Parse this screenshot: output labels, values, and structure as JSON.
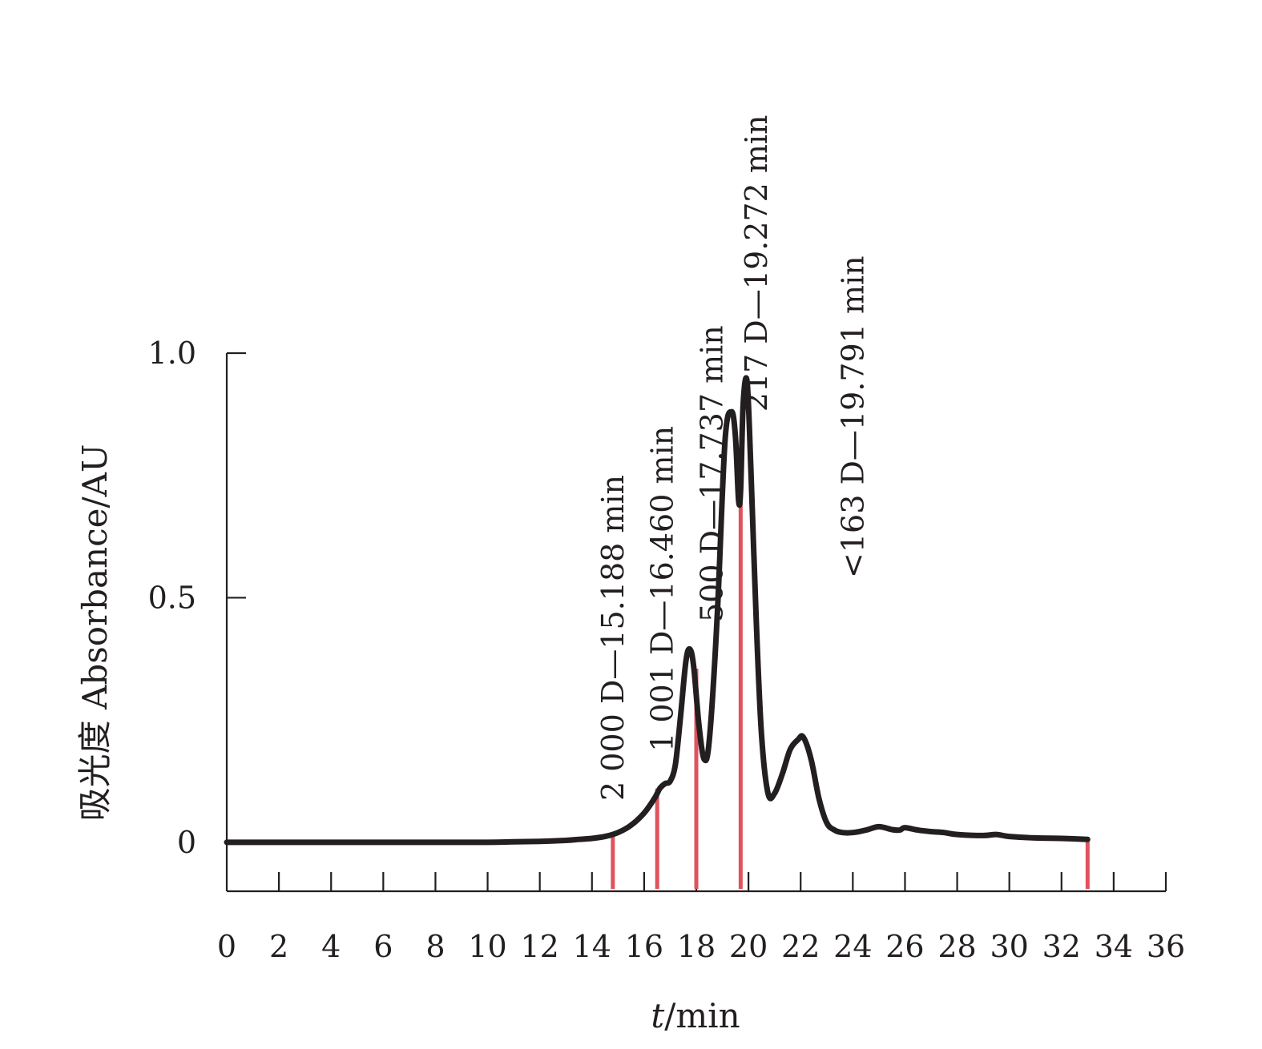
{
  "chart_data": {
    "type": "line",
    "title": "",
    "xlabel": {
      "italic": "t",
      "rest": "/min"
    },
    "ylabel": "吸光度 Absorbance/AU",
    "xlim": [
      0,
      36
    ],
    "ylim": [
      -0.1,
      1.0
    ],
    "xticks": [
      0,
      2,
      4,
      6,
      8,
      10,
      12,
      14,
      16,
      18,
      20,
      22,
      24,
      26,
      28,
      30,
      32,
      34,
      36
    ],
    "xtick_labels": [
      "0",
      "2",
      "4",
      "6",
      "8",
      "10",
      "12",
      "14",
      "16",
      "18",
      "20",
      "22",
      "24",
      "26",
      "28",
      "30",
      "32",
      "34",
      "36"
    ],
    "yticks": [
      0,
      0.5,
      1.0
    ],
    "ytick_labels": [
      "0",
      "0.5",
      "1.0"
    ],
    "grid": false,
    "series": [
      {
        "color": "#231f20",
        "x": [
          0,
          2,
          4,
          6,
          8,
          10,
          11,
          12,
          13,
          13.5,
          14,
          14.5,
          15,
          15.5,
          16,
          16.4,
          16.6,
          16.8,
          17,
          17.2,
          17.4,
          17.6,
          17.75,
          17.9,
          18.1,
          18.3,
          18.5,
          18.8,
          19.1,
          19.35,
          19.5,
          19.62,
          19.7,
          19.8,
          19.95,
          20.1,
          20.3,
          20.5,
          20.75,
          21,
          21.3,
          21.6,
          21.9,
          22.1,
          22.4,
          22.7,
          23,
          23.3,
          23.6,
          24,
          24.5,
          25,
          25.5,
          25.8,
          26,
          26.5,
          27,
          27.5,
          28,
          29,
          29.5,
          30,
          31,
          32,
          33
        ],
        "y": [
          0,
          0,
          0,
          0,
          0,
          0,
          0.001,
          0.002,
          0.004,
          0.006,
          0.008,
          0.012,
          0.02,
          0.035,
          0.06,
          0.09,
          0.11,
          0.12,
          0.125,
          0.16,
          0.26,
          0.37,
          0.395,
          0.36,
          0.24,
          0.17,
          0.21,
          0.46,
          0.82,
          0.88,
          0.83,
          0.7,
          0.72,
          0.9,
          0.94,
          0.75,
          0.45,
          0.22,
          0.1,
          0.1,
          0.14,
          0.19,
          0.21,
          0.215,
          0.17,
          0.09,
          0.04,
          0.025,
          0.02,
          0.02,
          0.025,
          0.032,
          0.026,
          0.025,
          0.03,
          0.025,
          0.022,
          0.02,
          0.016,
          0.014,
          0.016,
          0.012,
          0.009,
          0.008,
          0.006
        ]
      }
    ],
    "markers": {
      "color": "#e0525d",
      "x": [
        14.8,
        16.5,
        18.0,
        19.7,
        33.0
      ],
      "y_top": [
        0.015,
        0.11,
        0.355,
        0.71,
        0.01
      ]
    },
    "annotations": [
      {
        "text": "2 000 D—15.188 min",
        "x": 14.8,
        "y": 0.085
      },
      {
        "text": "1 001 D—16.460 min",
        "x": 16.7,
        "y": 0.185
      },
      {
        "text": "500 D—17.737 min",
        "x": 18.6,
        "y": 0.45
      },
      {
        "text": "217 D—19.272 min",
        "x": 20.3,
        "y": 0.88
      },
      {
        "text": "<163 D—19.791 min",
        "x": 24.0,
        "y": 0.54
      }
    ]
  }
}
